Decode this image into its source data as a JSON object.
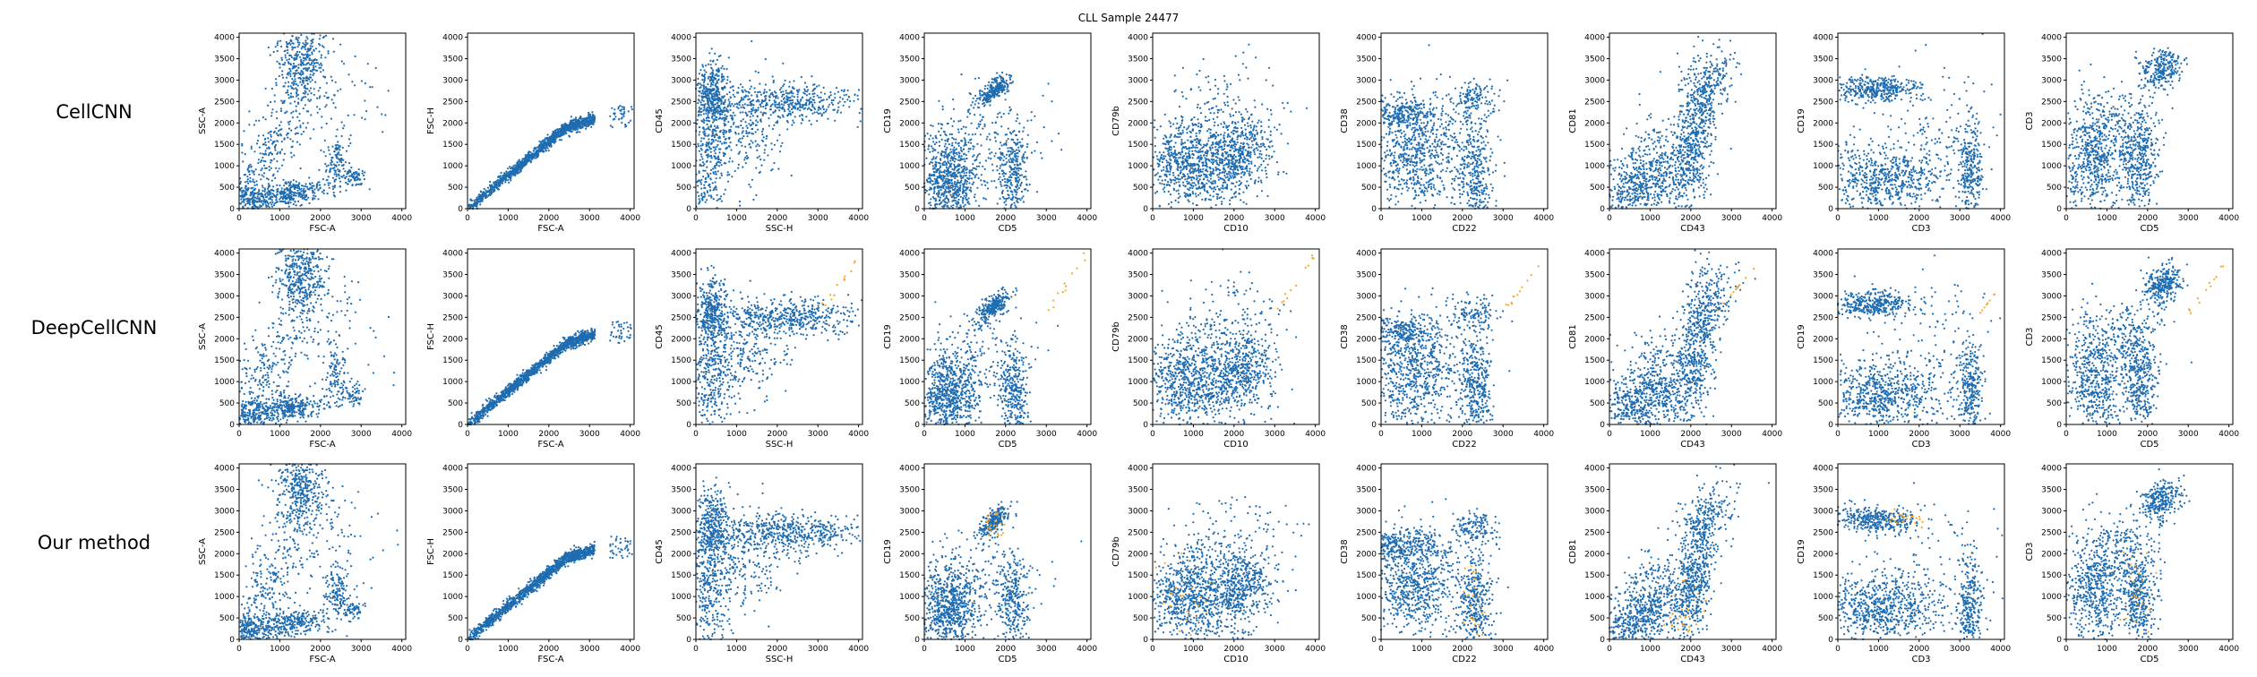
{
  "figure": {
    "title": "CLL Sample 24477",
    "row_labels": [
      "CellCNN",
      "DeepCellCNN",
      "Our method"
    ]
  },
  "style": {
    "point_color": "#1f6cb0",
    "highlight_color": "#f5a623",
    "axis_color": "#000000"
  },
  "panels": [
    {
      "xlabel": "FSC-A",
      "ylabel": "SSC-A"
    },
    {
      "xlabel": "FSC-A",
      "ylabel": "FSC-H"
    },
    {
      "xlabel": "SSC-H",
      "ylabel": "CD45"
    },
    {
      "xlabel": "CD5",
      "ylabel": "CD19"
    },
    {
      "xlabel": "CD10",
      "ylabel": "CD79b"
    },
    {
      "xlabel": "CD22",
      "ylabel": "CD38"
    },
    {
      "xlabel": "CD43",
      "ylabel": "CD81"
    },
    {
      "xlabel": "CD3",
      "ylabel": "CD19"
    },
    {
      "xlabel": "CD5",
      "ylabel": "CD3"
    }
  ],
  "chart_data": {
    "type": "scatter",
    "title": "CLL Sample 24477",
    "rows": [
      "CellCNN",
      "DeepCellCNN",
      "Our method"
    ],
    "xlim": [
      0,
      4096
    ],
    "ylim": [
      0,
      4096
    ],
    "xticks": [
      0,
      1000,
      2000,
      3000,
      4000
    ],
    "yticks": [
      0,
      500,
      1000,
      1500,
      2000,
      2500,
      3000,
      3500,
      4000
    ],
    "grid": false,
    "legend": "none",
    "series": [
      {
        "name": "",
        "color": "#1f6cb0"
      },
      {
        "name": "",
        "color": "#f5a623"
      }
    ]
  }
}
